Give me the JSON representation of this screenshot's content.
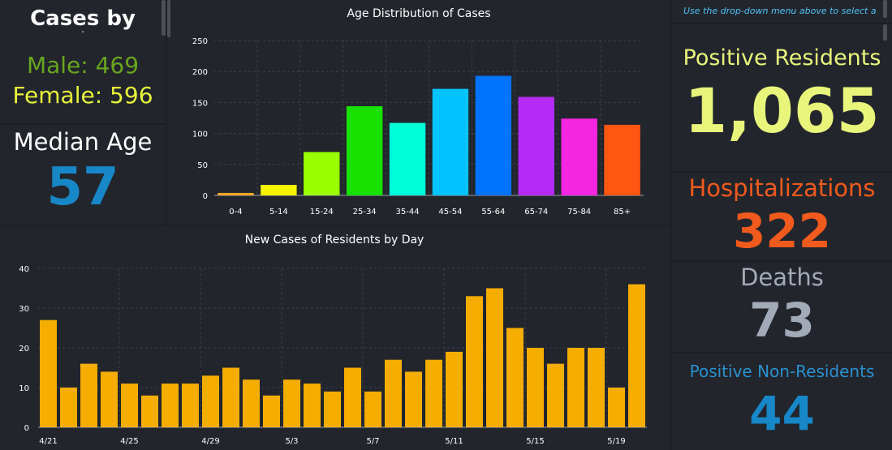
{
  "sex_panel": {
    "title": "Cases by",
    "title_sub": "-",
    "male": "Male: 469",
    "female": "Female: 596",
    "male_color": "#6aa51e",
    "female_color": "#e6f53a"
  },
  "median_age": {
    "label": "Median Age",
    "value": "57",
    "color": "#1787c8"
  },
  "hint": {
    "text": "Use the drop-down menu above to select a"
  },
  "stats": [
    {
      "label": "Positive Residents",
      "value": "1,065",
      "label_color": "#e8f57a",
      "value_color": "#e8f57a"
    },
    {
      "label": "Hospitalizations",
      "value": "322",
      "label_color": "#f05a1c",
      "value_color": "#f05a1c"
    },
    {
      "label": "Deaths",
      "value": "73",
      "label_color": "#a3aab7",
      "value_color": "#a3aab7"
    },
    {
      "label": "Positive Non-Residents",
      "value": "44",
      "label_color": "#2a91cf",
      "value_color": "#1787c8"
    }
  ],
  "chart_data": [
    {
      "type": "bar",
      "title": "Age Distribution of Cases",
      "categories": [
        "0-4",
        "5-14",
        "15-24",
        "25-34",
        "35-44",
        "45-54",
        "55-64",
        "65-74",
        "75-84",
        "85+"
      ],
      "values": [
        4,
        17,
        70,
        144,
        117,
        172,
        193,
        159,
        124,
        114
      ],
      "colors": [
        "#f5a623",
        "#f5f500",
        "#99ff00",
        "#18e000",
        "#00ffd8",
        "#00c3ff",
        "#0073ff",
        "#b52bf5",
        "#f525e1",
        "#ff5712"
      ],
      "ylim": [
        0,
        250
      ],
      "yticks": [
        "0",
        "50",
        "100",
        "150",
        "200",
        "250"
      ],
      "grid": true
    },
    {
      "type": "bar",
      "title": "New Cases of Residents by Day",
      "values": [
        27,
        10,
        16,
        14,
        11,
        8,
        11,
        11,
        13,
        15,
        12,
        8,
        12,
        11,
        9,
        15,
        9,
        17,
        14,
        17,
        19,
        33,
        35,
        25,
        20,
        16,
        20,
        20,
        10,
        36
      ],
      "xtick_labels": [
        {
          "index": 0,
          "label": "4/21"
        },
        {
          "index": 4,
          "label": "4/25"
        },
        {
          "index": 8,
          "label": "4/29"
        },
        {
          "index": 12,
          "label": "5/3"
        },
        {
          "index": 16,
          "label": "5/7"
        },
        {
          "index": 20,
          "label": "5/11"
        },
        {
          "index": 24,
          "label": "5/15"
        },
        {
          "index": 28,
          "label": "5/19"
        }
      ],
      "color": "#f5ad00",
      "ylim": [
        0,
        40
      ],
      "yticks": [
        "0",
        "10",
        "20",
        "30",
        "40"
      ],
      "grid": true
    }
  ]
}
